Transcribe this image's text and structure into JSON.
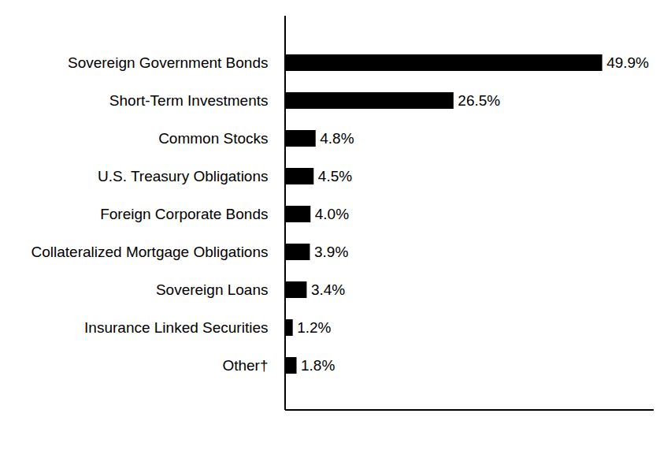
{
  "chart_data": {
    "type": "bar",
    "orientation": "horizontal",
    "categories": [
      "Sovereign Government Bonds",
      "Short-Term Investments",
      "Common Stocks",
      "U.S. Treasury Obligations",
      "Foreign Corporate Bonds",
      "Collateralized Mortgage Obligations",
      "Sovereign Loans",
      "Insurance Linked Securities",
      "Other†"
    ],
    "values": [
      49.9,
      26.5,
      4.8,
      4.5,
      4.0,
      3.9,
      3.4,
      1.2,
      1.8
    ],
    "value_labels": [
      "49.9%",
      "26.5%",
      "4.8%",
      "4.5%",
      "4.0%",
      "3.9%",
      "3.4%",
      "1.2%",
      "1.8%"
    ],
    "color": "#000000",
    "xlim": [
      0,
      58
    ],
    "xticks": [],
    "data_labels": true,
    "tick_labels": "y",
    "grid": false
  }
}
